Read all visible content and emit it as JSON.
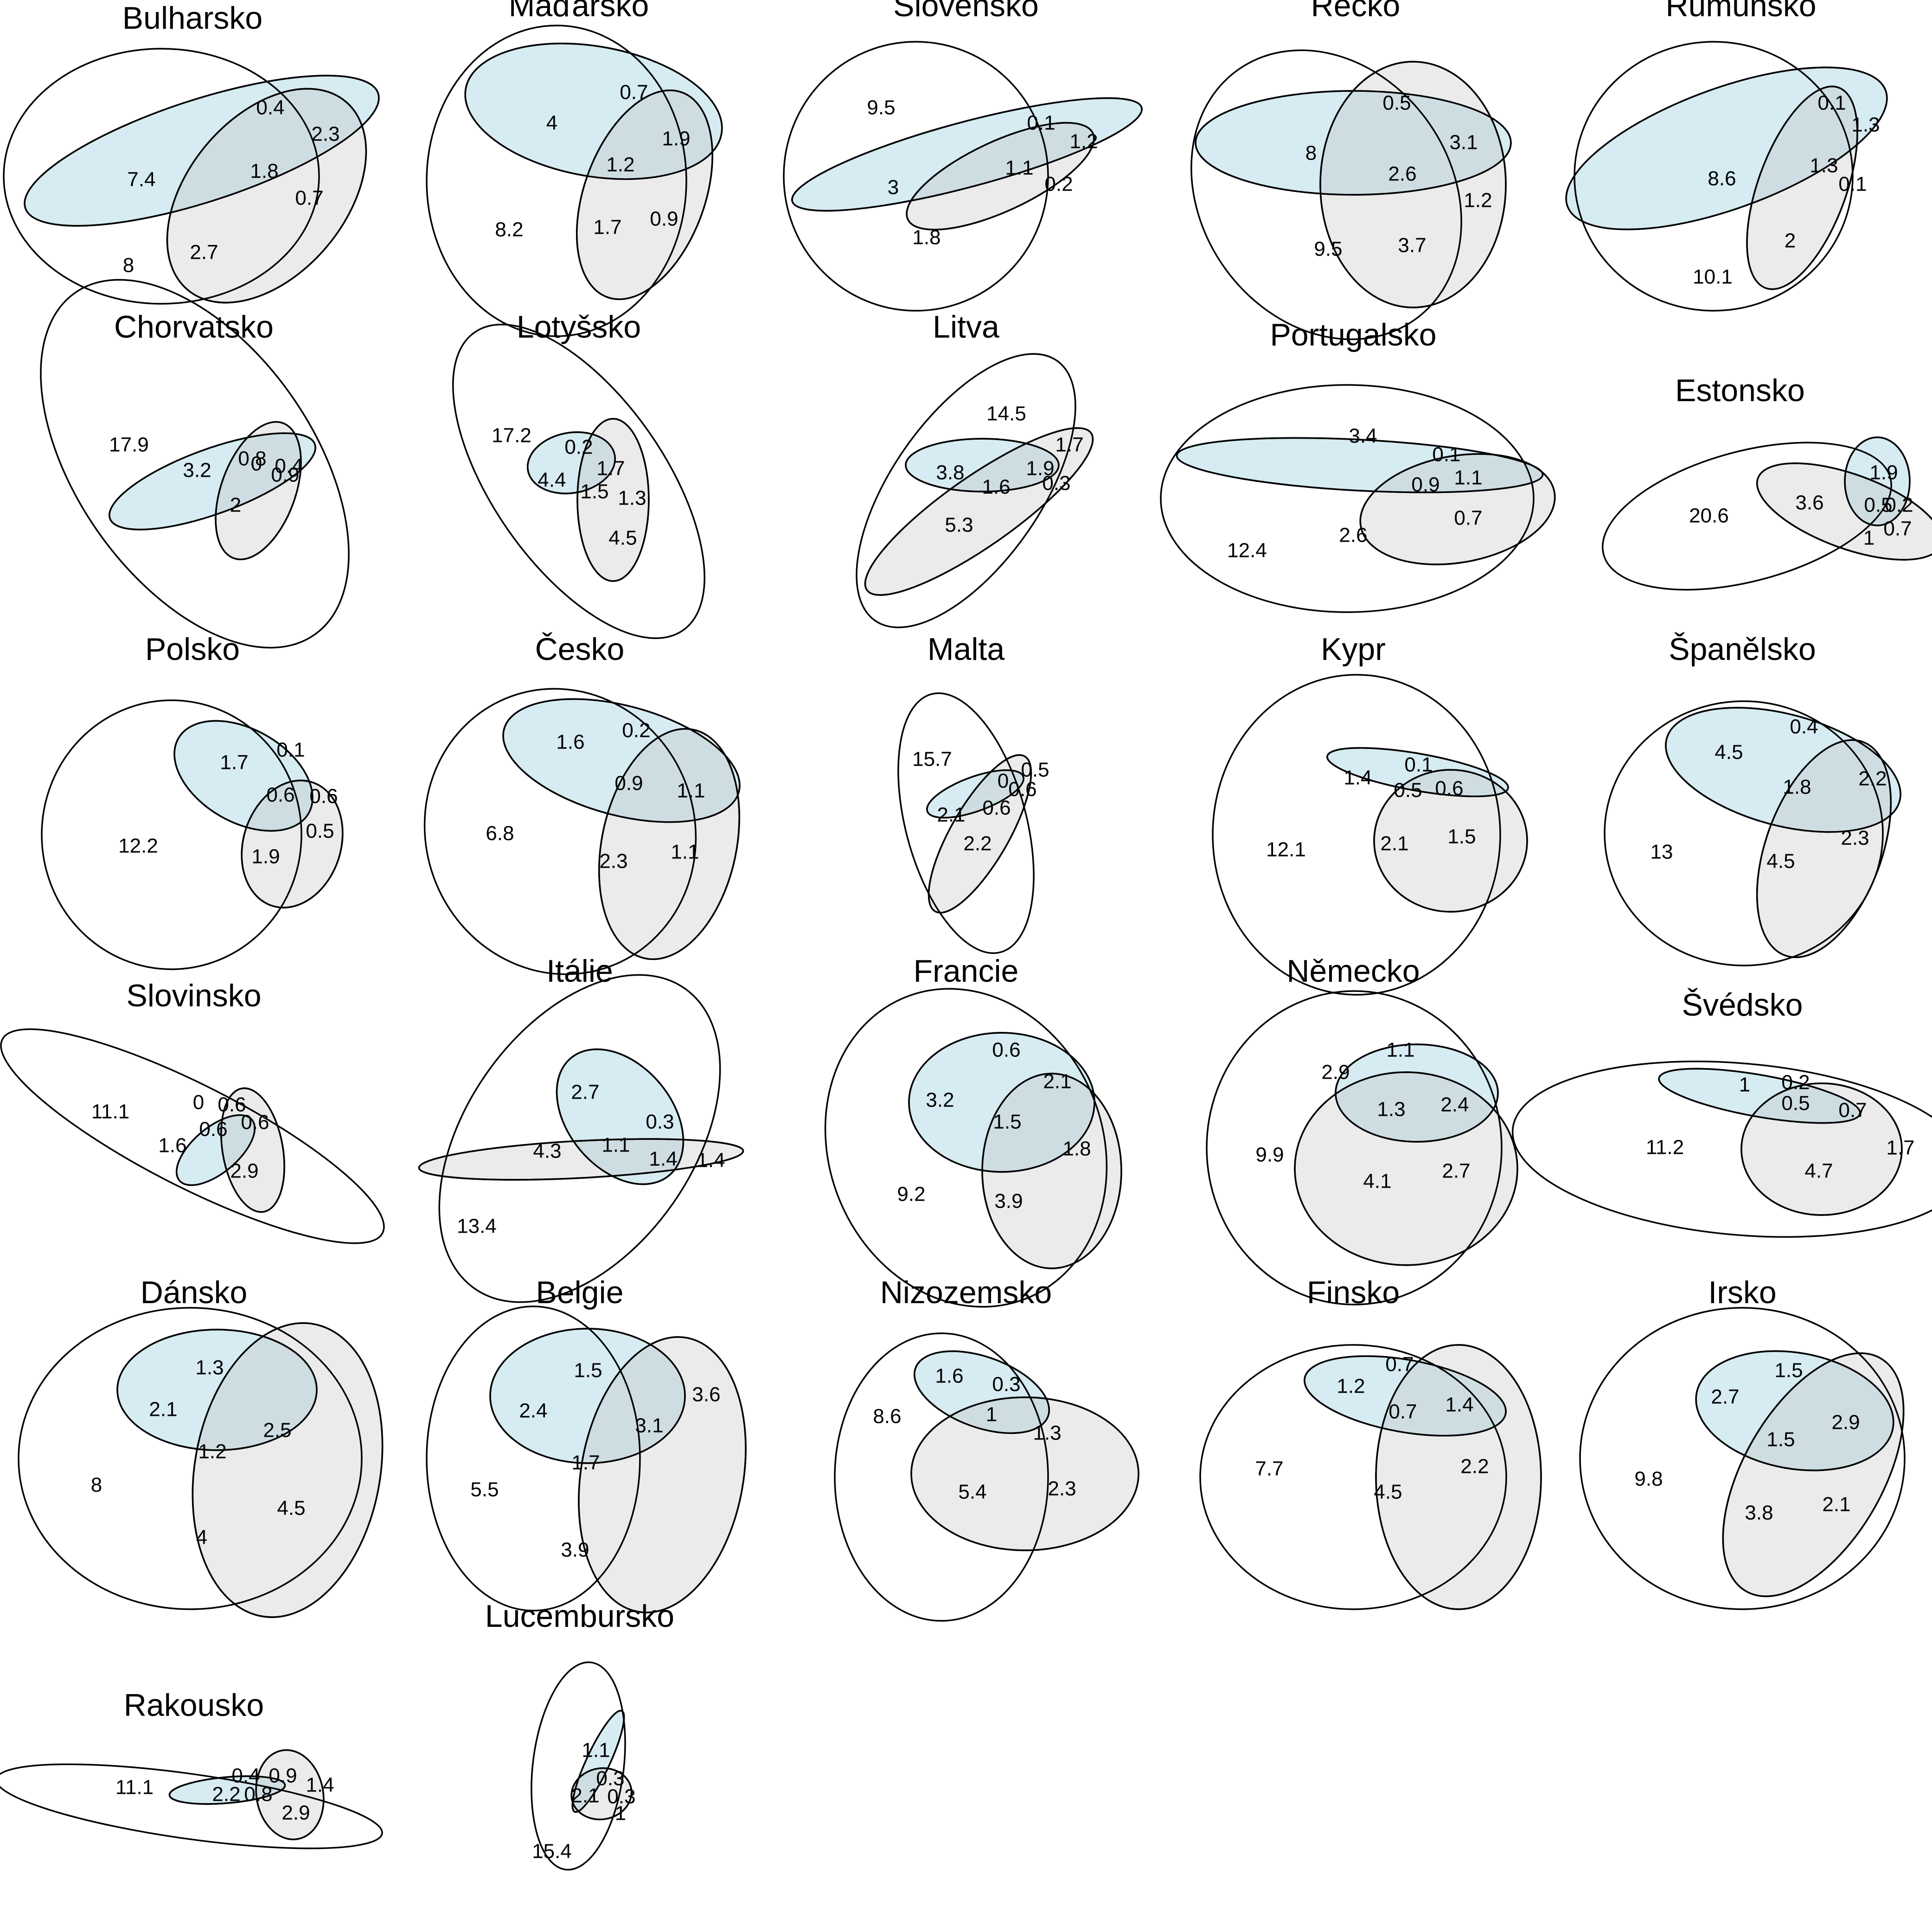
{
  "colors": {
    "background": "#ffffff",
    "outline": "#000000",
    "blue_fill": "#add8e6",
    "grey_fill": "#bebebe",
    "text": "#000000"
  },
  "panels": [
    {
      "title": "Bulharsko",
      "labels": [
        "7.4",
        "0.4",
        "2.3",
        "1.8",
        "0.7",
        "8",
        "2.7"
      ]
    },
    {
      "title": "Maďarsko",
      "labels": [
        "4",
        "0.7",
        "1.9",
        "1.2",
        "8.2",
        "1.7",
        "0.9"
      ]
    },
    {
      "title": "Slovensko",
      "labels": [
        "9.5",
        "0.1",
        "1.2",
        "3",
        "1.1",
        "0.2",
        "1.8"
      ]
    },
    {
      "title": "Recko",
      "labels": [
        "8",
        "0.5",
        "3.1",
        "2.6",
        "1.2",
        "9.5",
        "3.7"
      ]
    },
    {
      "title": "Rumunsko",
      "labels": [
        "0.1",
        "1.3",
        "8.6",
        "1.3",
        "0.1",
        "2",
        "10.1"
      ]
    },
    {
      "title": "Chorvatsko",
      "labels": [
        "17.9",
        "0",
        "0.9",
        "3.2",
        "0.8",
        "0.4",
        "2"
      ]
    },
    {
      "title": "Lotyšsko",
      "labels": [
        "17.2",
        "0.2",
        "4.4",
        "1.7",
        "1.5",
        "1.3",
        "4.5"
      ]
    },
    {
      "title": "Litva",
      "labels": [
        "14.5",
        "1.7",
        "3.8",
        "1.9",
        "1.6",
        "0.3",
        "5.3"
      ]
    },
    {
      "title": "Portugalsko",
      "labels": [
        "3.4",
        "0.1",
        "1.1",
        "0.9",
        "0.7",
        "12.4",
        "2.6"
      ]
    },
    {
      "title": "Estonsko",
      "labels": [
        "1.9",
        "20.6",
        "3.6",
        "0.5",
        "0.2",
        "0.7",
        "1"
      ]
    },
    {
      "title": "Polsko",
      "labels": [
        "1.7",
        "0.1",
        "0.6",
        "0.6",
        "12.2",
        "0.5",
        "1.9"
      ]
    },
    {
      "title": "Česko",
      "labels": [
        "1.6",
        "0.2",
        "0.9",
        "1.1",
        "6.8",
        "2.3",
        "1.1"
      ]
    },
    {
      "title": "Malta",
      "labels": [
        "15.7",
        "0.5",
        "0",
        "0.6",
        "2.1",
        "0.6",
        "2.2"
      ]
    },
    {
      "title": "Kypr",
      "labels": [
        "1.4",
        "0.1",
        "0.5",
        "0.6",
        "12.1",
        "2.1",
        "1.5"
      ]
    },
    {
      "title": "Španělsko",
      "labels": [
        "4.5",
        "0.4",
        "1.8",
        "2.2",
        "13",
        "4.5",
        "2.3"
      ]
    },
    {
      "title": "Slovinsko",
      "labels": [
        "11.1",
        "0",
        "0.6",
        "1.6",
        "0.6",
        "0.6",
        "2.9"
      ]
    },
    {
      "title": "Itálie",
      "labels": [
        "2.7",
        "0.3",
        "4.3",
        "1.1",
        "1.4",
        "1.4",
        "13.4"
      ]
    },
    {
      "title": "Francie",
      "labels": [
        "0.6",
        "3.2",
        "2.1",
        "1.5",
        "1.8",
        "9.2",
        "3.9"
      ]
    },
    {
      "title": "Německo",
      "labels": [
        "1.1",
        "2.9",
        "1.3",
        "2.4",
        "9.9",
        "4.1",
        "2.7"
      ]
    },
    {
      "title": "Švédsko",
      "labels": [
        "1",
        "0.2",
        "0.5",
        "0.7",
        "11.2",
        "1.7",
        "4.7"
      ]
    },
    {
      "title": "Dánsko",
      "labels": [
        "1.3",
        "2.1",
        "2.5",
        "1.2",
        "8",
        "4",
        "4.5"
      ]
    },
    {
      "title": "Belgie",
      "labels": [
        "1.5",
        "3.6",
        "2.4",
        "3.1",
        "1.7",
        "5.5",
        "3.9"
      ]
    },
    {
      "title": "Nizozemsko",
      "labels": [
        "1.6",
        "0.3",
        "8.6",
        "1",
        "1.3",
        "5.4",
        "2.3"
      ]
    },
    {
      "title": "Finsko",
      "labels": [
        "0.7",
        "1.2",
        "1.4",
        "0.7",
        "7.7",
        "4.5",
        "2.2"
      ]
    },
    {
      "title": "Irsko",
      "labels": [
        "1.5",
        "2.7",
        "2.9",
        "1.5",
        "9.8",
        "3.8",
        "2.1"
      ]
    },
    {
      "title": "Rakousko",
      "labels": [
        "11.1",
        "0.4",
        "0.9",
        "1.4",
        "2.2",
        "0.8",
        "2.9"
      ]
    },
    {
      "title": "Lucembursko",
      "labels": [
        "1.1",
        "0.3",
        "2.1",
        "0.3",
        "1",
        "15.4"
      ]
    }
  ]
}
